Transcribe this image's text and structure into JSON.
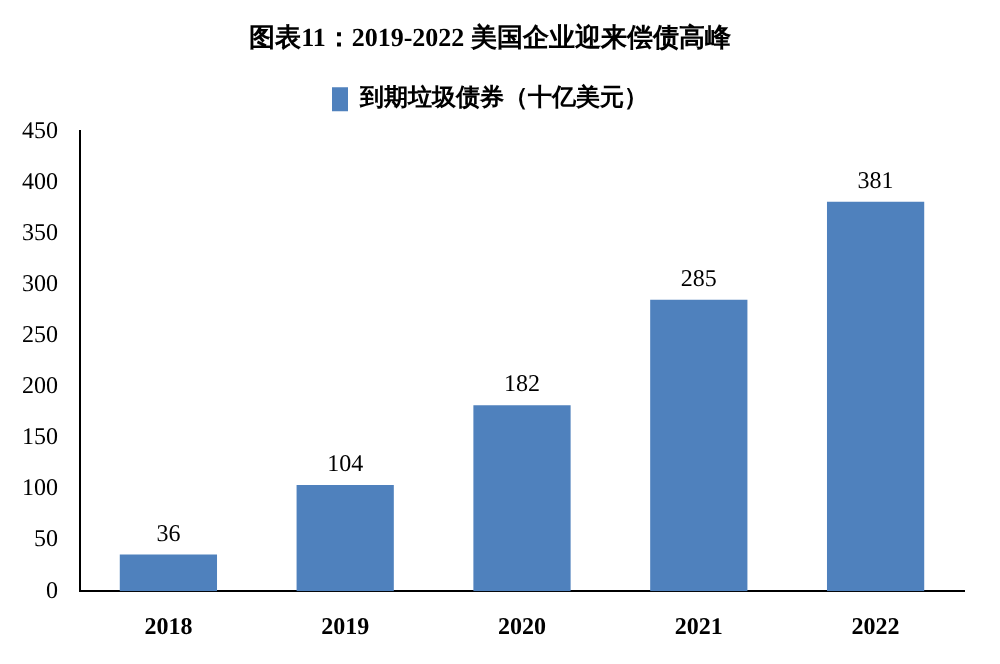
{
  "chart_data": {
    "type": "bar",
    "title": "图表11：2019-2022 美国企业迎来偿债高峰",
    "categories": [
      "2018",
      "2019",
      "2020",
      "2021",
      "2022"
    ],
    "series": [
      {
        "name": "到期垃圾债券（十亿美元）",
        "color": "#4f81bd",
        "values": [
          36,
          104,
          182,
          285,
          381
        ]
      }
    ],
    "ylim": [
      0,
      450
    ],
    "yticks": [
      0,
      50,
      100,
      150,
      200,
      250,
      300,
      350,
      400,
      450
    ],
    "grid": false,
    "legend": "top",
    "data_labels": true
  }
}
